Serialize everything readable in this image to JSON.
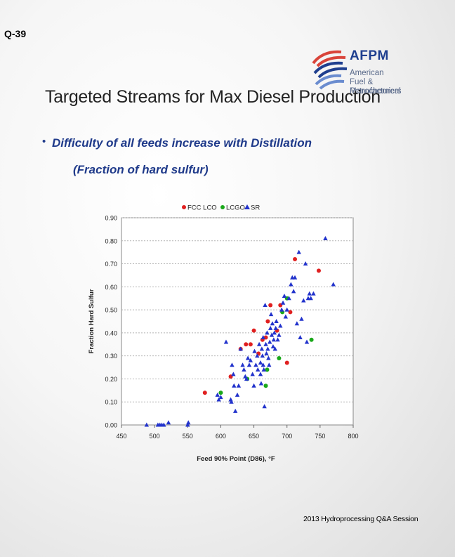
{
  "slide": {
    "id": "Q-39",
    "title": "Targeted Streams for Max Diesel Production",
    "bullet": "•",
    "bullet_line1": "Difficulty of all feeds increase with Distillation",
    "bullet_line2": "(Fraction of hard sulfur)",
    "footer": "2013 Hydroprocessing Q&A Session"
  },
  "logo": {
    "name": "AFPM",
    "line1": "American",
    "line2": "Fuel & Petrochemical",
    "line3": "Manufacturers",
    "colors": {
      "red": "#d9443a",
      "blue": "#1f3f8f",
      "light_blue": "#6a8ccf"
    }
  },
  "chart_data": {
    "type": "scatter",
    "title": "",
    "xlabel": "Feed 90% Point (D86), °F",
    "ylabel": "Fraction Hard Sulfur",
    "xlim": [
      450,
      800
    ],
    "ylim": [
      0,
      0.9
    ],
    "x_ticks": [
      "450",
      "500",
      "550",
      "600",
      "650",
      "700",
      "750",
      "800"
    ],
    "y_ticks": [
      "0.00",
      "0.10",
      "0.20",
      "0.30",
      "0.40",
      "0.50",
      "0.60",
      "0.70",
      "0.80",
      "0.90"
    ],
    "grid": true,
    "legend_position": "top",
    "series": [
      {
        "name": "FCC LCO",
        "color": "#e02020",
        "marker": "circle",
        "points": [
          [
            576,
            0.14
          ],
          [
            615,
            0.21
          ],
          [
            630,
            0.33
          ],
          [
            638,
            0.35
          ],
          [
            645,
            0.35
          ],
          [
            650,
            0.41
          ],
          [
            657,
            0.31
          ],
          [
            663,
            0.37
          ],
          [
            668,
            0.38
          ],
          [
            671,
            0.45
          ],
          [
            675,
            0.52
          ],
          [
            685,
            0.41
          ],
          [
            690,
            0.52
          ],
          [
            700,
            0.27
          ],
          [
            705,
            0.49
          ],
          [
            712,
            0.72
          ],
          [
            748,
            0.67
          ]
        ]
      },
      {
        "name": "LCGO",
        "color": "#1aa81a",
        "marker": "circle",
        "points": [
          [
            600,
            0.14
          ],
          [
            640,
            0.2
          ],
          [
            668,
            0.17
          ],
          [
            670,
            0.24
          ],
          [
            688,
            0.29
          ],
          [
            693,
            0.49
          ],
          [
            700,
            0.55
          ],
          [
            737,
            0.37
          ]
        ]
      },
      {
        "name": "SR",
        "color": "#2233cc",
        "marker": "triangle",
        "points": [
          [
            488,
            0.0
          ],
          [
            505,
            0.0
          ],
          [
            508,
            0.0
          ],
          [
            511,
            0.0
          ],
          [
            514,
            0.0
          ],
          [
            521,
            0.01
          ],
          [
            550,
            0.0
          ],
          [
            551,
            0.01
          ],
          [
            595,
            0.13
          ],
          [
            597,
            0.11
          ],
          [
            600,
            0.12
          ],
          [
            608,
            0.36
          ],
          [
            615,
            0.11
          ],
          [
            616,
            0.1
          ],
          [
            617,
            0.26
          ],
          [
            619,
            0.22
          ],
          [
            620,
            0.17
          ],
          [
            622,
            0.06
          ],
          [
            625,
            0.13
          ],
          [
            627,
            0.17
          ],
          [
            630,
            0.33
          ],
          [
            633,
            0.26
          ],
          [
            635,
            0.24
          ],
          [
            637,
            0.21
          ],
          [
            639,
            0.2
          ],
          [
            641,
            0.29
          ],
          [
            643,
            0.26
          ],
          [
            645,
            0.28
          ],
          [
            648,
            0.22
          ],
          [
            650,
            0.17
          ],
          [
            651,
            0.32
          ],
          [
            653,
            0.26
          ],
          [
            655,
            0.3
          ],
          [
            656,
            0.24
          ],
          [
            658,
            0.35
          ],
          [
            660,
            0.27
          ],
          [
            660,
            0.22
          ],
          [
            661,
            0.18
          ],
          [
            662,
            0.33
          ],
          [
            663,
            0.3
          ],
          [
            664,
            0.38
          ],
          [
            664,
            0.26
          ],
          [
            665,
            0.24
          ],
          [
            666,
            0.08
          ],
          [
            667,
            0.52
          ],
          [
            668,
            0.35
          ],
          [
            669,
            0.31
          ],
          [
            670,
            0.4
          ],
          [
            671,
            0.33
          ],
          [
            672,
            0.29
          ],
          [
            673,
            0.26
          ],
          [
            674,
            0.36
          ],
          [
            675,
            0.42
          ],
          [
            676,
            0.48
          ],
          [
            677,
            0.39
          ],
          [
            678,
            0.44
          ],
          [
            679,
            0.34
          ],
          [
            680,
            0.37
          ],
          [
            681,
            0.4
          ],
          [
            682,
            0.33
          ],
          [
            683,
            0.42
          ],
          [
            684,
            0.45
          ],
          [
            686,
            0.37
          ],
          [
            688,
            0.39
          ],
          [
            690,
            0.43
          ],
          [
            692,
            0.5
          ],
          [
            694,
            0.53
          ],
          [
            696,
            0.56
          ],
          [
            698,
            0.47
          ],
          [
            700,
            0.5
          ],
          [
            703,
            0.55
          ],
          [
            706,
            0.61
          ],
          [
            708,
            0.64
          ],
          [
            710,
            0.58
          ],
          [
            712,
            0.64
          ],
          [
            715,
            0.44
          ],
          [
            718,
            0.75
          ],
          [
            720,
            0.38
          ],
          [
            722,
            0.46
          ],
          [
            725,
            0.54
          ],
          [
            728,
            0.7
          ],
          [
            730,
            0.36
          ],
          [
            732,
            0.55
          ],
          [
            734,
            0.57
          ],
          [
            736,
            0.55
          ],
          [
            740,
            0.57
          ],
          [
            758,
            0.81
          ],
          [
            770,
            0.61
          ]
        ]
      }
    ]
  }
}
